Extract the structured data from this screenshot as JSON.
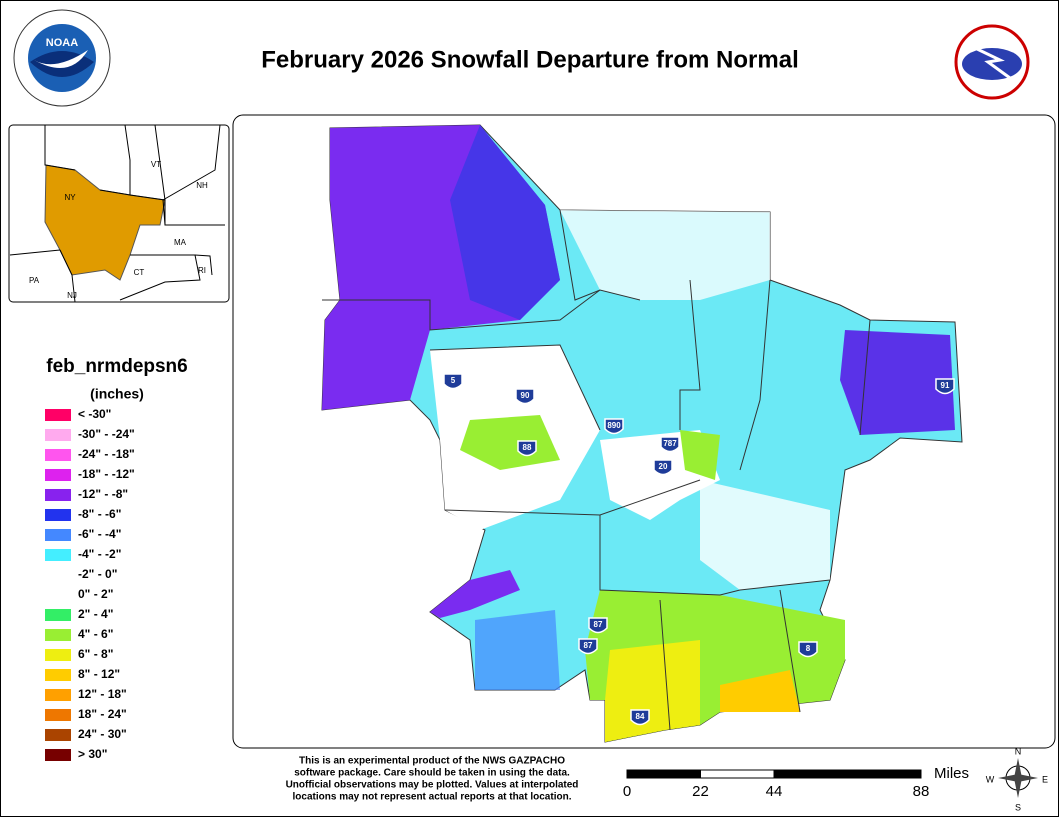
{
  "header": {
    "title": "February 2026 Snowfall Departure from Normal"
  },
  "inset": {
    "labels": [
      "VT",
      "NH",
      "NY",
      "MA",
      "CT",
      "RI",
      "PA",
      "NJ"
    ]
  },
  "legend": {
    "title": "feb_nrmdepsn6",
    "units": "(inches)",
    "items": [
      {
        "label": "< -30\"",
        "color": "#ff0066"
      },
      {
        "label": "-30\" - -24\"",
        "color": "#ffaaee"
      },
      {
        "label": "-24\" - -18\"",
        "color": "#ff55ee"
      },
      {
        "label": "-18\" - -12\"",
        "color": "#dd22ee"
      },
      {
        "label": "-12\" - -8\"",
        "color": "#8822ee"
      },
      {
        "label": "-8\" - -6\"",
        "color": "#2233ee"
      },
      {
        "label": "-6\" - -4\"",
        "color": "#4488ff"
      },
      {
        "label": "-4\" - -2\"",
        "color": "#44eeff"
      },
      {
        "label": "-2\" - 0\"",
        "color": "#ffffff"
      },
      {
        "label": "0\" - 2\"",
        "color": "#ffffff"
      },
      {
        "label": "2\" - 4\"",
        "color": "#33ee66"
      },
      {
        "label": "4\" - 6\"",
        "color": "#99ee33"
      },
      {
        "label": "6\" - 8\"",
        "color": "#eeee11"
      },
      {
        "label": "8\" - 12\"",
        "color": "#ffcc00"
      },
      {
        "label": "12\" - 18\"",
        "color": "#ffa000"
      },
      {
        "label": "18\" - 24\"",
        "color": "#ee7700"
      },
      {
        "label": "24\" - 30\"",
        "color": "#aa4400"
      },
      {
        "label": "> 30\"",
        "color": "#770000"
      }
    ]
  },
  "map": {
    "interstates": [
      "5",
      "90",
      "890",
      "88",
      "787",
      "20",
      "91",
      "87",
      "87",
      "84",
      "8"
    ]
  },
  "disclaimer": [
    "This is an experimental product of the NWS GAZPACHO",
    "software package. Care should be taken in using the data.",
    "Unofficial observations may be plotted. Values at interpolated",
    "locations may not represent actual reports at that location."
  ],
  "scale": {
    "unit": "Miles",
    "ticks": [
      0,
      22,
      44,
      88
    ]
  },
  "compass": [
    "N",
    "E",
    "S",
    "W"
  ]
}
